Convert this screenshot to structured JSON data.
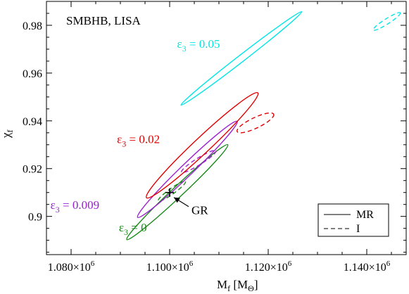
{
  "chart_data": {
    "type": "ellipse-contour",
    "title": "SMBHB, LISA",
    "xlabel": "M",
    "xlabel_sub": "f",
    "xlabel_unit": "M",
    "xlabel_unit_sub": "Θ",
    "ylabel": "χ",
    "ylabel_sub": "f",
    "xlim": [
      1075000,
      1148000
    ],
    "ylim": [
      0.884,
      0.99
    ],
    "x_ticks": [
      {
        "value": 1080000,
        "mantissa": "1.080×10",
        "exp": "6"
      },
      {
        "value": 1100000,
        "mantissa": "1.100×10",
        "exp": "6"
      },
      {
        "value": 1120000,
        "mantissa": "1.120×10",
        "exp": "6"
      },
      {
        "value": 1140000,
        "mantissa": "1.140×10",
        "exp": "6"
      }
    ],
    "y_ticks": [
      {
        "value": 0.9,
        "label": "0.9"
      },
      {
        "value": 0.92,
        "label": "0.92"
      },
      {
        "value": 0.94,
        "label": "0.94"
      },
      {
        "value": 0.96,
        "label": "0.96"
      },
      {
        "value": 0.98,
        "label": "0.98"
      }
    ],
    "legend": {
      "placement": "bottom-right",
      "entries": [
        {
          "label": "MR",
          "style": "solid"
        },
        {
          "label": "I",
          "style": "dashed"
        }
      ]
    },
    "series": [
      {
        "id": "eps-0-mr",
        "color": "#1a8a1a",
        "style": "solid",
        "p1": [
          1091300,
          0.8903
        ],
        "p2": [
          1111800,
          0.93
        ],
        "minor_half": 0.0022
      },
      {
        "id": "eps-0-i",
        "color": "#1a8a1a",
        "style": "dashed",
        "p1": [
          1097700,
          0.9065
        ],
        "p2": [
          1103200,
          0.9146
        ],
        "minor_half": 0.0012
      },
      {
        "id": "eps-0009-mr",
        "color": "#9b1fcf",
        "style": "solid",
        "p1": [
          1093500,
          0.8996
        ],
        "p2": [
          1113700,
          0.9398
        ],
        "minor_half": 0.0025
      },
      {
        "id": "eps-0009-i",
        "color": "#9b1fcf",
        "style": "dashed",
        "p1": [
          1102400,
          0.9185
        ],
        "p2": [
          1109400,
          0.9275
        ],
        "minor_half": 0.0014
      },
      {
        "id": "eps-002-mr",
        "color": "#e00000",
        "style": "solid",
        "p1": [
          1095300,
          0.9078
        ],
        "p2": [
          1117900,
          0.9517
        ],
        "minor_half": 0.0033
      },
      {
        "id": "eps-002-i",
        "color": "#e00000",
        "style": "dashed",
        "p1": [
          1113700,
          0.9355
        ],
        "p2": [
          1121100,
          0.9428
        ],
        "minor_half": 0.0022
      },
      {
        "id": "eps-005-mr",
        "color": "#00e5e5",
        "style": "solid",
        "p1": [
          1102300,
          0.9466
        ],
        "p2": [
          1126800,
          0.9857
        ],
        "minor_half": 0.0014
      },
      {
        "id": "eps-005-i",
        "color": "#00e5e5",
        "style": "dashed",
        "p1": [
          1141300,
          0.978
        ],
        "p2": [
          1146800,
          0.9852
        ],
        "minor_half": 0.0011
      }
    ],
    "gr_marker": {
      "x": 1100000,
      "y": 0.91,
      "label": "GR"
    },
    "annotations": [
      {
        "id": "eps-005",
        "prefix": "ε",
        "sub": "3",
        "text": " = 0.05",
        "color": "#00e5e5",
        "x": 1101500,
        "y": 0.9705
      },
      {
        "id": "eps-002",
        "prefix": "ε",
        "sub": "3",
        "text": " = 0.02",
        "color": "#e00000",
        "x": 1089300,
        "y": 0.9307
      },
      {
        "id": "eps-0009",
        "prefix": "ε",
        "sub": "3",
        "text": " = 0.009",
        "color": "#9b1fcf",
        "x": 1075800,
        "y": 0.9032
      },
      {
        "id": "eps-0",
        "prefix": "ε",
        "sub": "3",
        "text": " = 0",
        "color": "#1a8a1a",
        "x": 1089700,
        "y": 0.8937
      }
    ]
  }
}
